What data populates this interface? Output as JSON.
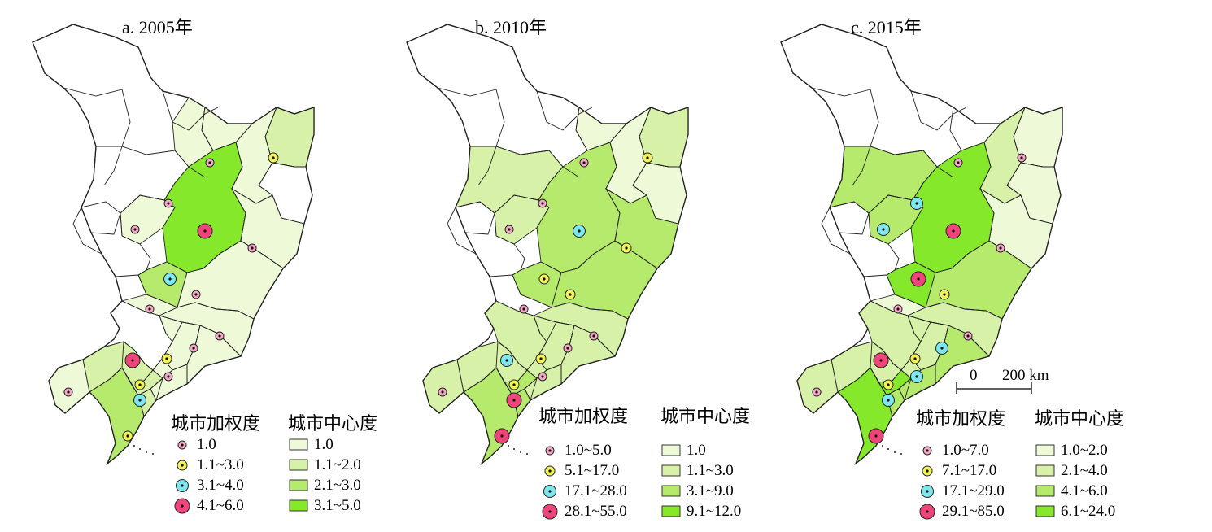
{
  "panels": [
    {
      "title": "a. 2005年",
      "legend_weight_title": "城市加权度",
      "legend_center_title": "城市中心度",
      "weight_classes": [
        "1.0",
        "1.1~3.0",
        "3.1~4.0",
        "4.1~6.0"
      ],
      "center_classes": [
        "1.0",
        "1.1~2.0",
        "2.1~3.0",
        "3.1~5.0"
      ]
    },
    {
      "title": "b. 2010年",
      "legend_weight_title": "城市加权度",
      "legend_center_title": "城市中心度",
      "weight_classes": [
        "1.0~5.0",
        "5.1~17.0",
        "17.1~28.0",
        "28.1~55.0"
      ],
      "center_classes": [
        "1.0",
        "1.1~3.0",
        "3.1~9.0",
        "9.1~12.0"
      ]
    },
    {
      "title": "c. 2015年",
      "legend_weight_title": "城市加权度",
      "legend_center_title": "城市中心度",
      "weight_classes": [
        "1.0~7.0",
        "7.1~17.0",
        "17.1~29.0",
        "29.1~85.0"
      ],
      "center_classes": [
        "1.0~2.0",
        "2.1~4.0",
        "4.1~6.0",
        "6.1~24.0"
      ]
    }
  ],
  "scale_bar": {
    "zero": "0",
    "label": "200 km"
  },
  "colors": {
    "weight_markers": [
      "#f7a8c8",
      "#f2f25a",
      "#7ee6ee",
      "#f0457a"
    ],
    "center_fills": [
      "#eef9d8",
      "#d7f1a8",
      "#b6ea6c",
      "#86e82a"
    ],
    "none_fill": "#ffffff",
    "boundary": "#222222"
  }
}
